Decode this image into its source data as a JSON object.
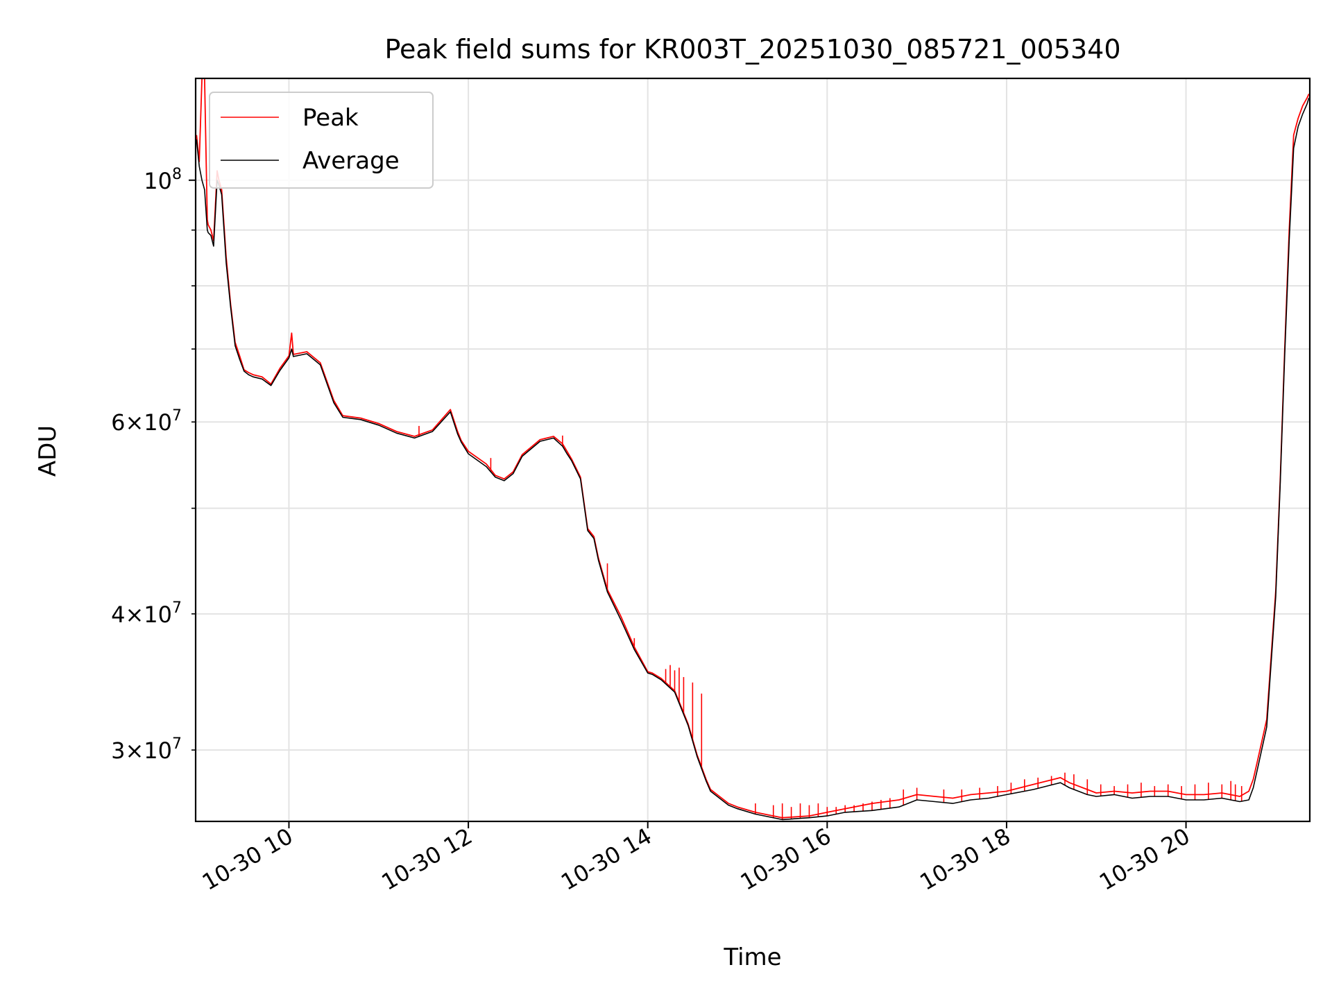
{
  "chart_data": {
    "type": "line",
    "title": "Peak field sums for KR003T_20251030_085721_005340",
    "xlabel": "Time",
    "ylabel": "ADU",
    "yscale": "log",
    "xlim": [
      8.96,
      21.38
    ],
    "ylim": [
      25800000,
      124000000
    ],
    "grid": true,
    "legend_position": "upper-left",
    "x_ticks": [
      {
        "value": 10,
        "label": "10-30 10"
      },
      {
        "value": 12,
        "label": "10-30 12"
      },
      {
        "value": 14,
        "label": "10-30 14"
      },
      {
        "value": 16,
        "label": "10-30 16"
      },
      {
        "value": 18,
        "label": "10-30 18"
      },
      {
        "value": 20,
        "label": "10-30 20"
      }
    ],
    "y_ticks_major": [
      {
        "value": 100000000,
        "base": "10",
        "exp": "8"
      }
    ],
    "y_ticks_minor": [
      {
        "value": 30000000,
        "mant": "3",
        "base": "10",
        "exp": "7"
      },
      {
        "value": 40000000,
        "mant": "4",
        "base": "10",
        "exp": "7"
      },
      {
        "value": 50000000,
        "mant": "",
        "base": "",
        "exp": ""
      },
      {
        "value": 60000000,
        "mant": "6",
        "base": "10",
        "exp": "7"
      },
      {
        "value": 70000000,
        "mant": "",
        "base": "",
        "exp": ""
      },
      {
        "value": 80000000,
        "mant": "",
        "base": "",
        "exp": ""
      },
      {
        "value": 90000000,
        "mant": "",
        "base": "",
        "exp": ""
      }
    ],
    "series": [
      {
        "name": "Peak",
        "color": "#ff0000",
        "x": [
          8.97,
          9.0,
          9.03,
          9.06,
          9.09,
          9.1,
          9.13,
          9.16,
          9.2,
          9.22,
          9.25,
          9.3,
          9.35,
          9.4,
          9.45,
          9.5,
          9.55,
          9.6,
          9.7,
          9.8,
          9.9,
          10.0,
          10.03,
          10.05,
          10.2,
          10.35,
          10.5,
          10.6,
          10.8,
          11.0,
          11.2,
          11.4,
          11.6,
          11.8,
          11.88,
          11.92,
          12.0,
          12.2,
          12.3,
          12.4,
          12.45,
          12.5,
          12.6,
          12.8,
          12.95,
          13.05,
          13.1,
          13.15,
          13.25,
          13.33,
          13.4,
          13.45,
          13.55,
          13.7,
          13.85,
          14.0,
          14.05,
          14.15,
          14.3,
          14.45,
          14.55,
          14.65,
          14.7,
          14.9,
          15.0,
          15.2,
          15.5,
          15.8,
          16.0,
          16.2,
          16.5,
          16.8,
          17.0,
          17.2,
          17.4,
          17.6,
          17.8,
          18.0,
          18.3,
          18.6,
          18.7,
          18.9,
          19.0,
          19.2,
          19.4,
          19.6,
          19.8,
          20.0,
          20.2,
          20.4,
          20.6,
          20.7,
          20.75,
          20.8,
          20.9,
          21.0,
          21.05,
          21.1,
          21.15,
          21.2,
          21.25,
          21.3,
          21.35,
          21.37
        ],
        "values": [
          110000000,
          104000000,
          124000000,
          124000000,
          92000000,
          91000000,
          90000000,
          88000000,
          102000000,
          100000000,
          98000000,
          85000000,
          77000000,
          71000000,
          69000000,
          67000000,
          66600000,
          66300000,
          66000000,
          65000000,
          67200000,
          69000000,
          72400000,
          69200000,
          69600000,
          68000000,
          62800000,
          60800000,
          60500000,
          59800000,
          58800000,
          58200000,
          59000000,
          61600000,
          58800000,
          57700000,
          56400000,
          54900000,
          53600000,
          53200000,
          53600000,
          54000000,
          56000000,
          57800000,
          58200000,
          57300000,
          56400000,
          55500000,
          53400000,
          47900000,
          47100000,
          45000000,
          42100000,
          39800000,
          37300000,
          35400000,
          35300000,
          34900000,
          34000000,
          31700000,
          29700000,
          28200000,
          27600000,
          26800000,
          26600000,
          26300000,
          26000000,
          26100000,
          26300000,
          26500000,
          26800000,
          27000000,
          27300000,
          27200000,
          27100000,
          27300000,
          27400000,
          27500000,
          27900000,
          28300000,
          28000000,
          27600000,
          27400000,
          27500000,
          27400000,
          27500000,
          27500000,
          27300000,
          27300000,
          27400000,
          27200000,
          27500000,
          28200000,
          29400000,
          32000000,
          42000000,
          53000000,
          70000000,
          90000000,
          110000000,
          114000000,
          117000000,
          119000000,
          120000000
        ],
        "spike_x": [
          11.45,
          12.25,
          13.05,
          13.55,
          13.85,
          14.2,
          14.25,
          14.3,
          14.35,
          14.4,
          14.5,
          14.6,
          15.2,
          15.4,
          15.5,
          15.6,
          15.7,
          15.8,
          15.9,
          16.0,
          16.1,
          16.2,
          16.3,
          16.4,
          16.5,
          16.6,
          16.7,
          16.85,
          17.0,
          17.3,
          17.5,
          17.7,
          17.9,
          18.05,
          18.2,
          18.35,
          18.5,
          18.65,
          18.75,
          18.9,
          19.05,
          19.2,
          19.35,
          19.5,
          19.65,
          19.8,
          19.95,
          20.1,
          20.25,
          20.4,
          20.5,
          20.55,
          20.62
        ],
        "spike_values": [
          59500000,
          55600000,
          58300000,
          44500000,
          38000000,
          35600000,
          35900000,
          35500000,
          35700000,
          35000000,
          34600000,
          33800000,
          26800000,
          26700000,
          26800000,
          26600000,
          26800000,
          26700000,
          26800000,
          26600000,
          26600000,
          26700000,
          26700000,
          26800000,
          26900000,
          27000000,
          27100000,
          27600000,
          27700000,
          27600000,
          27600000,
          27700000,
          27800000,
          28000000,
          28200000,
          28300000,
          28400000,
          28600000,
          28500000,
          28200000,
          27900000,
          27800000,
          27900000,
          28000000,
          27800000,
          27900000,
          27800000,
          27900000,
          28000000,
          27900000,
          28100000,
          27900000,
          27800000
        ]
      },
      {
        "name": "Average",
        "color": "#000000",
        "x": [
          8.97,
          9.0,
          9.03,
          9.06,
          9.09,
          9.1,
          9.13,
          9.16,
          9.2,
          9.22,
          9.25,
          9.3,
          9.35,
          9.4,
          9.45,
          9.5,
          9.55,
          9.6,
          9.7,
          9.8,
          9.9,
          10.0,
          10.03,
          10.05,
          10.2,
          10.35,
          10.5,
          10.6,
          10.8,
          11.0,
          11.2,
          11.4,
          11.6,
          11.8,
          11.88,
          11.92,
          12.0,
          12.2,
          12.3,
          12.4,
          12.45,
          12.5,
          12.6,
          12.8,
          12.95,
          13.05,
          13.1,
          13.15,
          13.25,
          13.33,
          13.4,
          13.45,
          13.55,
          13.7,
          13.85,
          14.0,
          14.05,
          14.15,
          14.3,
          14.45,
          14.55,
          14.65,
          14.7,
          14.9,
          15.0,
          15.2,
          15.5,
          15.8,
          16.0,
          16.2,
          16.5,
          16.8,
          17.0,
          17.2,
          17.4,
          17.6,
          17.8,
          18.0,
          18.3,
          18.6,
          18.7,
          18.9,
          19.0,
          19.2,
          19.4,
          19.6,
          19.8,
          20.0,
          20.2,
          20.4,
          20.6,
          20.7,
          20.75,
          20.8,
          20.9,
          21.0,
          21.05,
          21.1,
          21.15,
          21.2,
          21.25,
          21.3,
          21.35,
          21.37
        ],
        "values": [
          109000000,
          103000000,
          100000000,
          98000000,
          90000000,
          89500000,
          89000000,
          87000000,
          100000000,
          99000000,
          97000000,
          84000000,
          76500000,
          70500000,
          68500000,
          66800000,
          66300000,
          66000000,
          65700000,
          64800000,
          66900000,
          68700000,
          70000000,
          68900000,
          69300000,
          67700000,
          62500000,
          60600000,
          60300000,
          59600000,
          58600000,
          58000000,
          58800000,
          61300000,
          58500000,
          57500000,
          56100000,
          54600000,
          53400000,
          53000000,
          53400000,
          53800000,
          55800000,
          57600000,
          58000000,
          57000000,
          56100000,
          55300000,
          53200000,
          47700000,
          46900000,
          44800000,
          41900000,
          39500000,
          37100000,
          35300000,
          35200000,
          34800000,
          33900000,
          31600000,
          29600000,
          28100000,
          27500000,
          26700000,
          26500000,
          26200000,
          25900000,
          26000000,
          26100000,
          26300000,
          26400000,
          26600000,
          27000000,
          26900000,
          26800000,
          27000000,
          27100000,
          27300000,
          27600000,
          28000000,
          27700000,
          27300000,
          27200000,
          27300000,
          27100000,
          27200000,
          27200000,
          27000000,
          27000000,
          27100000,
          26900000,
          27000000,
          27700000,
          28900000,
          31500000,
          41500000,
          52500000,
          69000000,
          88000000,
          107000000,
          112000000,
          115000000,
          117500000,
          119000000
        ]
      }
    ]
  }
}
